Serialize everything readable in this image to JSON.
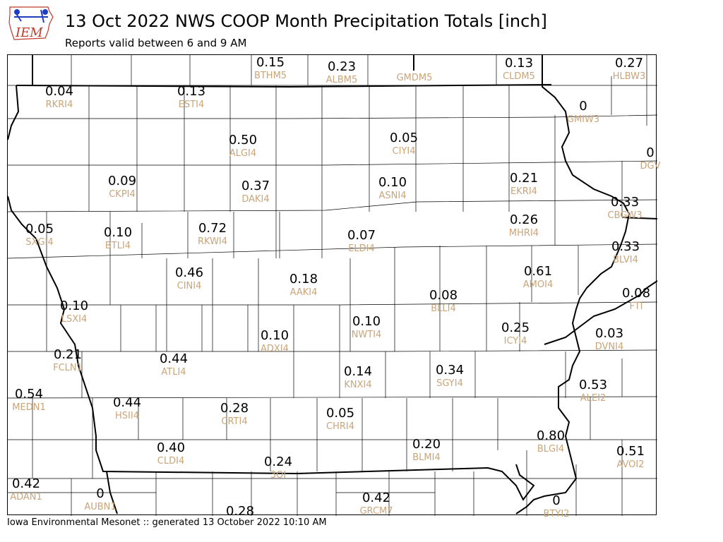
{
  "logo": {
    "text": "IEM",
    "name": "iem-logo"
  },
  "header": {
    "title": "13 Oct 2022 NWS COOP Month Precipitation Totals [inch]",
    "subtitle": "Reports valid between 6 and 9 AM"
  },
  "footer": {
    "text": "Iowa Environmental Mesonet :: generated 13 October 2022 10:10 AM"
  },
  "colors": {
    "value": "#000000",
    "station": "#c9a57a",
    "county_line": "#000000",
    "logo_blue": "#1f3fbf",
    "logo_red": "#c0392b"
  },
  "stations": [
    {
      "id": "BTHM5",
      "value": "0.15"
    },
    {
      "id": "ALBM5",
      "value": "0.23"
    },
    {
      "id": "GMDM5",
      "value": ""
    },
    {
      "id": "CLDM5",
      "value": "0.13"
    },
    {
      "id": "HLBW3",
      "value": "0.27"
    },
    {
      "id": "RKRI4",
      "value": "0.04"
    },
    {
      "id": "ESTI4",
      "value": "0.13"
    },
    {
      "id": "GMIW3",
      "value": "0"
    },
    {
      "id": "ALGI4",
      "value": "0.50"
    },
    {
      "id": "CIYI4",
      "value": "0.05"
    },
    {
      "id": "DGV",
      "value": "0"
    },
    {
      "id": "CKPI4",
      "value": "0.09"
    },
    {
      "id": "DAKI4",
      "value": "0.37"
    },
    {
      "id": "ASNI4",
      "value": "0.10"
    },
    {
      "id": "EKRI4",
      "value": "0.21"
    },
    {
      "id": "CBGW3",
      "value": "0.33"
    },
    {
      "id": "SXGI4",
      "value": "0.05"
    },
    {
      "id": "BTLI4",
      "value": "0.10"
    },
    {
      "id": "RKWI4",
      "value": "0.72"
    },
    {
      "id": "ELDI4",
      "value": "0.07"
    },
    {
      "id": "MHRI4",
      "value": "0.26"
    },
    {
      "id": "BLVI4",
      "value": "0.33"
    },
    {
      "id": "CINI4",
      "value": "0.46"
    },
    {
      "id": "AAKI4",
      "value": "0.18"
    },
    {
      "id": "AMOI4",
      "value": "0.61"
    },
    {
      "id": "BLLI4",
      "value": "0.08"
    },
    {
      "id": "FTI",
      "value": "0.08"
    },
    {
      "id": "LSXI4",
      "value": "0.10"
    },
    {
      "id": "NWTI4",
      "value": "0.10"
    },
    {
      "id": "ICYI4",
      "value": "0.25"
    },
    {
      "id": "ADXI4",
      "value": "0.10"
    },
    {
      "id": "DVNI4",
      "value": "0.03"
    },
    {
      "id": "FCLN1",
      "value": "0.21"
    },
    {
      "id": "ATLI4",
      "value": "0.44"
    },
    {
      "id": "KNXI4",
      "value": "0.14"
    },
    {
      "id": "SGYI4",
      "value": "0.34"
    },
    {
      "id": "ALEI2",
      "value": "0.53"
    },
    {
      "id": "MEDN1",
      "value": "0.54"
    },
    {
      "id": "HSII4",
      "value": "0.44"
    },
    {
      "id": "CRTI4",
      "value": "0.28"
    },
    {
      "id": "CHRI4",
      "value": "0.05"
    },
    {
      "id": "BLGI4",
      "value": "0.80"
    },
    {
      "id": "CLDI4",
      "value": "0.40"
    },
    {
      "id": "BLMI4",
      "value": "0.20"
    },
    {
      "id": "AVOI2",
      "value": "0.51"
    },
    {
      "id": "3OI",
      "value": "0.24"
    },
    {
      "id": "ADAN1",
      "value": "0.42"
    },
    {
      "id": "AUBN1",
      "value": "0"
    },
    {
      "id": "GRCM7",
      "value": "0.42"
    },
    {
      "id": "BTYI2",
      "value": "0"
    },
    {
      "id": "",
      "value": "0.28"
    }
  ]
}
